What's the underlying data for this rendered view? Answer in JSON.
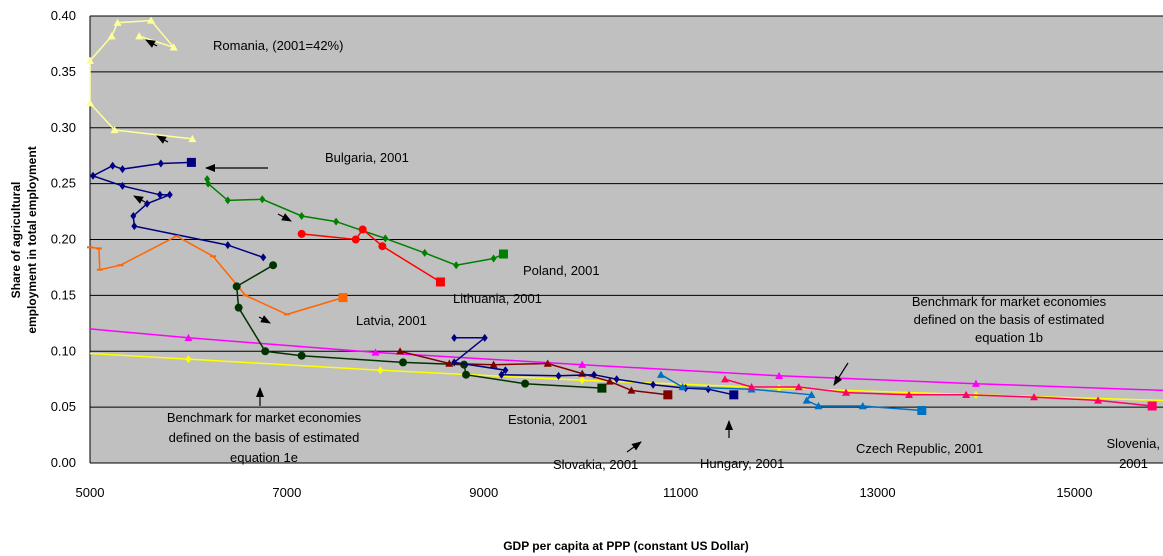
{
  "chart_data": {
    "type": "line",
    "xlabel": "GDP per capita at PPP (constant US Dollar)",
    "ylabel": "Share of agricultural employment in total employment",
    "ylabel_lines": [
      "Share of agricultural",
      "employment in total employment"
    ],
    "xlim": [
      5000,
      15900
    ],
    "ylim": [
      0,
      0.4
    ],
    "x_ticks": [
      5000,
      7000,
      9000,
      11000,
      13000,
      15000
    ],
    "x_tick_labels": [
      "5000",
      "7000",
      "9000",
      "11000",
      "13000",
      "15000"
    ],
    "y_ticks": [
      0,
      0.05,
      0.1,
      0.15,
      0.2,
      0.25,
      0.3,
      0.35,
      0.4
    ],
    "y_tick_labels": [
      "0.00",
      "0.05",
      "0.10",
      "0.15",
      "0.20",
      "0.25",
      "0.30",
      "0.35",
      "0.40"
    ],
    "grid": "horizontal",
    "plot_background": "#c0c0c0",
    "series": [
      {
        "country": "Romania",
        "color": "#ffff99",
        "marker": "triangle",
        "points": [
          [
            6040,
            0.29
          ],
          [
            5250,
            0.298
          ],
          [
            5000,
            0.322
          ],
          [
            5000,
            0.36
          ],
          [
            5220,
            0.382
          ],
          [
            5280,
            0.394
          ],
          [
            5620,
            0.396
          ],
          [
            5850,
            0.372
          ],
          [
            5500,
            0.382
          ]
        ],
        "endpoint": null
      },
      {
        "country": "Bulgaria",
        "color": "#000080",
        "marker": "diamond",
        "points": [
          [
            6760,
            0.184
          ],
          [
            6400,
            0.195
          ],
          [
            5450,
            0.212
          ],
          [
            5440,
            0.221
          ],
          [
            5580,
            0.232
          ],
          [
            5810,
            0.24
          ],
          [
            5710,
            0.24
          ],
          [
            5330,
            0.248
          ],
          [
            5030,
            0.257
          ],
          [
            5230,
            0.266
          ],
          [
            5330,
            0.263
          ],
          [
            5720,
            0.268
          ],
          [
            6030,
            0.269
          ]
        ],
        "endpoint": [
          6030,
          0.269
        ]
      },
      {
        "country": "Poland",
        "color": "#008000",
        "marker": "diamond",
        "points": [
          [
            6190,
            0.254
          ],
          [
            6200,
            0.25
          ],
          [
            6400,
            0.235
          ],
          [
            6750,
            0.236
          ],
          [
            7150,
            0.221
          ],
          [
            7500,
            0.216
          ],
          [
            8000,
            0.201
          ],
          [
            8400,
            0.188
          ],
          [
            8720,
            0.177
          ],
          [
            9100,
            0.183
          ],
          [
            9200,
            0.187
          ]
        ],
        "endpoint": [
          9200,
          0.187
        ]
      },
      {
        "country": "Lithuania",
        "color": "#ff0000",
        "marker": "circle",
        "points": [
          [
            7150,
            0.205
          ],
          [
            7700,
            0.2
          ],
          [
            7770,
            0.209
          ],
          [
            7970,
            0.194
          ],
          [
            8560,
            0.162
          ]
        ],
        "endpoint": [
          8560,
          0.162
        ]
      },
      {
        "country": "Latvia",
        "color": "#ff6600",
        "marker": "dash",
        "points": [
          [
            5000,
            0.193
          ],
          [
            5090,
            0.192
          ],
          [
            5100,
            0.173
          ],
          [
            5310,
            0.177
          ],
          [
            5880,
            0.203
          ],
          [
            6250,
            0.185
          ],
          [
            6580,
            0.15
          ],
          [
            7000,
            0.133
          ],
          [
            7570,
            0.148
          ]
        ],
        "endpoint": [
          7570,
          0.148
        ]
      },
      {
        "country": "Estonia",
        "color": "#003300",
        "marker": "circle",
        "points": [
          [
            6860,
            0.177
          ],
          [
            6490,
            0.158
          ],
          [
            6510,
            0.139
          ],
          [
            6780,
            0.1
          ],
          [
            7150,
            0.096
          ],
          [
            8180,
            0.09
          ],
          [
            8800,
            0.088
          ],
          [
            8820,
            0.079
          ],
          [
            9420,
            0.071
          ],
          [
            10200,
            0.067
          ]
        ],
        "endpoint": [
          10200,
          0.067
        ]
      },
      {
        "country": "Slovakia",
        "color": "#800000",
        "marker": "triangle",
        "points": [
          [
            8150,
            0.1
          ],
          [
            8650,
            0.089
          ],
          [
            9100,
            0.088
          ],
          [
            9650,
            0.089
          ],
          [
            10000,
            0.08
          ],
          [
            10280,
            0.073
          ],
          [
            10500,
            0.065
          ],
          [
            10870,
            0.061
          ]
        ],
        "endpoint": [
          10870,
          0.061
        ]
      },
      {
        "country": "Hungary",
        "color": "#000080",
        "marker": "diamond",
        "points": [
          [
            8700,
            0.112
          ],
          [
            9010,
            0.112
          ],
          [
            8700,
            0.09
          ],
          [
            9220,
            0.083
          ],
          [
            9180,
            0.079
          ],
          [
            9760,
            0.078
          ],
          [
            10120,
            0.079
          ],
          [
            10350,
            0.075
          ],
          [
            10720,
            0.07
          ],
          [
            11050,
            0.067
          ],
          [
            11280,
            0.066
          ],
          [
            11540,
            0.061
          ]
        ],
        "endpoint": [
          11540,
          0.061
        ]
      },
      {
        "country": "Czech Republic",
        "color": "#0070c0",
        "marker": "triangle",
        "points": [
          [
            10800,
            0.079
          ],
          [
            11020,
            0.068
          ],
          [
            11720,
            0.066
          ],
          [
            12330,
            0.061
          ],
          [
            12280,
            0.056
          ],
          [
            12400,
            0.051
          ],
          [
            12850,
            0.051
          ],
          [
            13450,
            0.047
          ]
        ],
        "endpoint": [
          13450,
          0.047
        ]
      },
      {
        "country": "Slovenia",
        "color": "#ff0066",
        "marker": "triangle",
        "points": [
          [
            11450,
            0.075
          ],
          [
            11720,
            0.068
          ],
          [
            12200,
            0.068
          ],
          [
            12680,
            0.063
          ],
          [
            13320,
            0.061
          ],
          [
            13900,
            0.061
          ],
          [
            14590,
            0.059
          ],
          [
            15240,
            0.056
          ],
          [
            15790,
            0.051
          ]
        ],
        "endpoint": [
          15790,
          0.051
        ]
      },
      {
        "country": "Benchmark 1b",
        "color": "#ff00ff",
        "marker": "triangle-sparse",
        "points": [
          [
            5000,
            0.12
          ],
          [
            6000,
            0.112
          ],
          [
            7900,
            0.099
          ],
          [
            10000,
            0.088
          ],
          [
            12000,
            0.078
          ],
          [
            14000,
            0.071
          ],
          [
            15900,
            0.065
          ]
        ],
        "markers_at": [
          [
            6000,
            0.112
          ],
          [
            7900,
            0.099
          ],
          [
            10000,
            0.088
          ],
          [
            12000,
            0.078
          ],
          [
            14000,
            0.071
          ]
        ]
      },
      {
        "country": "Benchmark 1e",
        "color": "#ffff00",
        "marker": "diamond-sparse",
        "points": [
          [
            5000,
            0.098
          ],
          [
            6000,
            0.093
          ],
          [
            7950,
            0.083
          ],
          [
            10000,
            0.074
          ],
          [
            12000,
            0.067
          ],
          [
            14000,
            0.061
          ],
          [
            15900,
            0.056
          ]
        ],
        "markers_at": [
          [
            6000,
            0.093
          ],
          [
            7950,
            0.083
          ],
          [
            10000,
            0.074
          ],
          [
            12000,
            0.067
          ],
          [
            14000,
            0.061
          ]
        ]
      }
    ],
    "annotations": [
      {
        "text": "Romania, (2001=42%)"
      },
      {
        "text": "Bulgaria, 2001"
      },
      {
        "text": "Poland, 2001"
      },
      {
        "text": "Lithuania, 2001"
      },
      {
        "text": "Latvia, 2001"
      },
      {
        "text": "Benchmark for market economies"
      },
      {
        "text": "defined on the basis of estimated"
      },
      {
        "text": "equation 1b"
      },
      {
        "text": "Benchmark for market economies"
      },
      {
        "text": "defined on the basis of estimated"
      },
      {
        "text": "equation 1e"
      },
      {
        "text": "Estonia, 2001"
      },
      {
        "text": "Slovakia, 2001"
      },
      {
        "text": "Hungary, 2001"
      },
      {
        "text": "Czech Republic, 2001"
      },
      {
        "text": "Slovenia,"
      },
      {
        "text": "2001"
      }
    ]
  }
}
